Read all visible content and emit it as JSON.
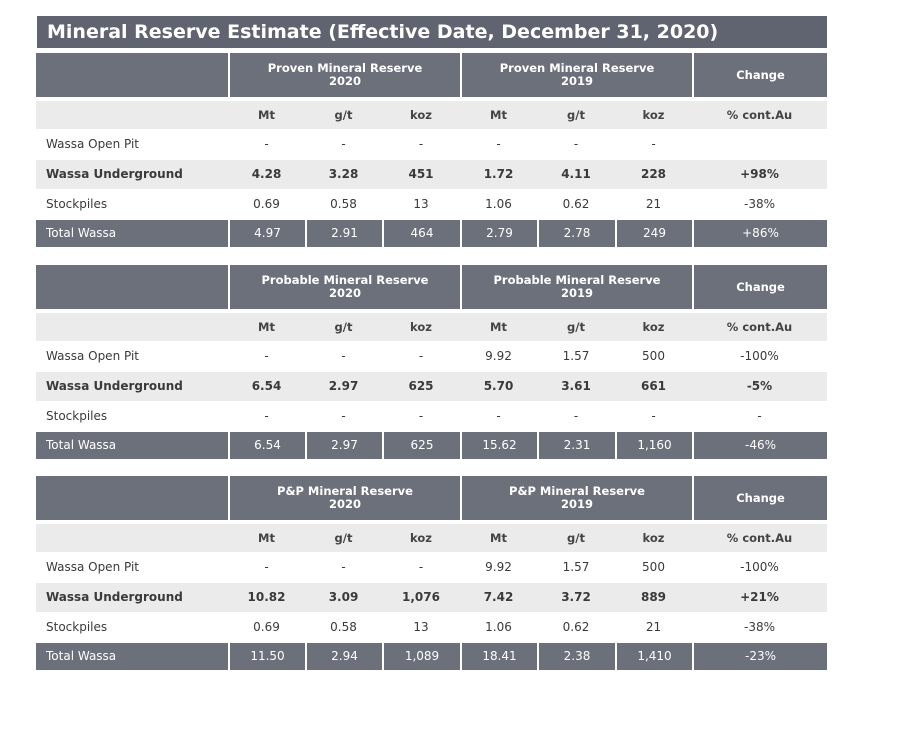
{
  "title": "Mineral Reserve Estimate (Effective Date, December 31, 2020)",
  "units": {
    "mt": "Mt",
    "gt": "g/t",
    "koz": "koz",
    "change": "% cont.Au"
  },
  "tables": [
    {
      "group_a_line1": "Proven Mineral Reserve",
      "group_a_line2": "2020",
      "group_b_line1": "Proven Mineral Reserve",
      "group_b_line2": "2019",
      "change": "Change",
      "rows": [
        {
          "label": "Wassa Open Pit",
          "v": [
            "-",
            "-",
            "-",
            "-",
            "-",
            "-"
          ],
          "chg": ""
        },
        {
          "label": "Wassa Underground",
          "v": [
            "4.28",
            "3.28",
            "451",
            "1.72",
            "4.11",
            "228"
          ],
          "chg": "+98%"
        },
        {
          "label": "Stockpiles",
          "v": [
            "0.69",
            "0.58",
            "13",
            "1.06",
            "0.62",
            "21"
          ],
          "chg": "-38%"
        },
        {
          "label": "Total Wassa",
          "v": [
            "4.97",
            "2.91",
            "464",
            "2.79",
            "2.78",
            "249"
          ],
          "chg": "+86%"
        }
      ]
    },
    {
      "group_a_line1": "Probable Mineral Reserve",
      "group_a_line2": "2020",
      "group_b_line1": "Probable Mineral Reserve",
      "group_b_line2": "2019",
      "change": "Change",
      "rows": [
        {
          "label": "Wassa Open Pit",
          "v": [
            "-",
            "-",
            "-",
            "9.92",
            "1.57",
            "500"
          ],
          "chg": "-100%"
        },
        {
          "label": "Wassa Underground",
          "v": [
            "6.54",
            "2.97",
            "625",
            "5.70",
            "3.61",
            "661"
          ],
          "chg": "-5%"
        },
        {
          "label": "Stockpiles",
          "v": [
            "-",
            "-",
            "-",
            "-",
            "-",
            "-"
          ],
          "chg": "-"
        },
        {
          "label": "Total Wassa",
          "v": [
            "6.54",
            "2.97",
            "625",
            "15.62",
            "2.31",
            "1,160"
          ],
          "chg": "-46%"
        }
      ]
    },
    {
      "group_a_line1": "P&P Mineral Reserve",
      "group_a_line2": "2020",
      "group_b_line1": "P&P Mineral Reserve",
      "group_b_line2": "2019",
      "change": "Change",
      "rows": [
        {
          "label": "Wassa Open Pit",
          "v": [
            "-",
            "-",
            "-",
            "9.92",
            "1.57",
            "500"
          ],
          "chg": "-100%"
        },
        {
          "label": "Wassa Underground",
          "v": [
            "10.82",
            "3.09",
            "1,076",
            "7.42",
            "3.72",
            "889"
          ],
          "chg": "+21%"
        },
        {
          "label": "Stockpiles",
          "v": [
            "0.69",
            "0.58",
            "13",
            "1.06",
            "0.62",
            "21"
          ],
          "chg": "-38%"
        },
        {
          "label": "Total Wassa",
          "v": [
            "11.50",
            "2.94",
            "1,089",
            "18.41",
            "2.38",
            "1,410"
          ],
          "chg": "-23%"
        }
      ]
    }
  ]
}
